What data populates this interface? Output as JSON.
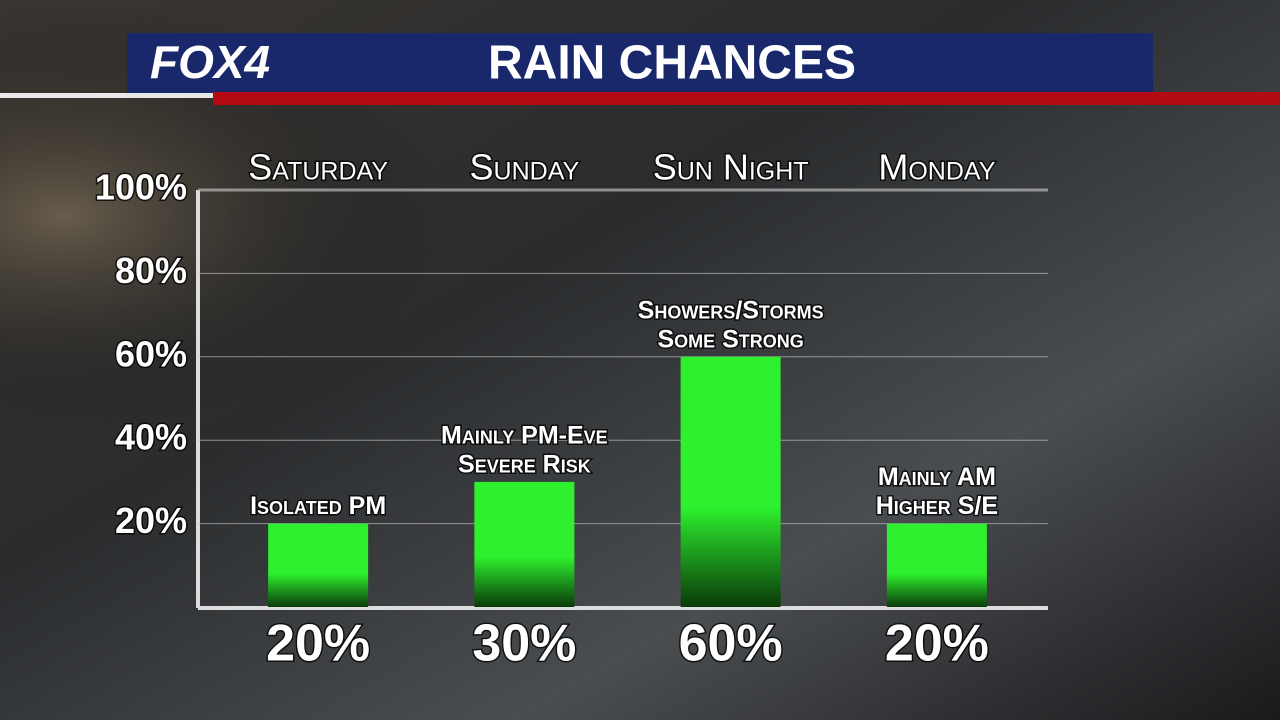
{
  "logo": "FOX4",
  "chart_data": {
    "type": "bar",
    "title": "RAIN CHANCES",
    "categories": [
      "Saturday",
      "Sunday",
      "Sun Night",
      "Monday"
    ],
    "values": [
      20,
      30,
      60,
      20
    ],
    "value_labels": [
      "20%",
      "30%",
      "60%",
      "20%"
    ],
    "annotations": [
      [
        "Isolated PM"
      ],
      [
        "Mainly PM-Eve",
        "Severe Risk"
      ],
      [
        "Showers/Storms",
        "Some Strong"
      ],
      [
        "Mainly AM",
        "Higher S/E"
      ]
    ],
    "color": "#2ef02e",
    "ylim": [
      0,
      100
    ],
    "yticks": [
      {
        "value": 20,
        "label": "20%"
      },
      {
        "value": 40,
        "label": "40%"
      },
      {
        "value": 60,
        "label": "60%"
      },
      {
        "value": 80,
        "label": "80%"
      },
      {
        "value": 100,
        "label": "100%"
      }
    ],
    "grid": true
  }
}
